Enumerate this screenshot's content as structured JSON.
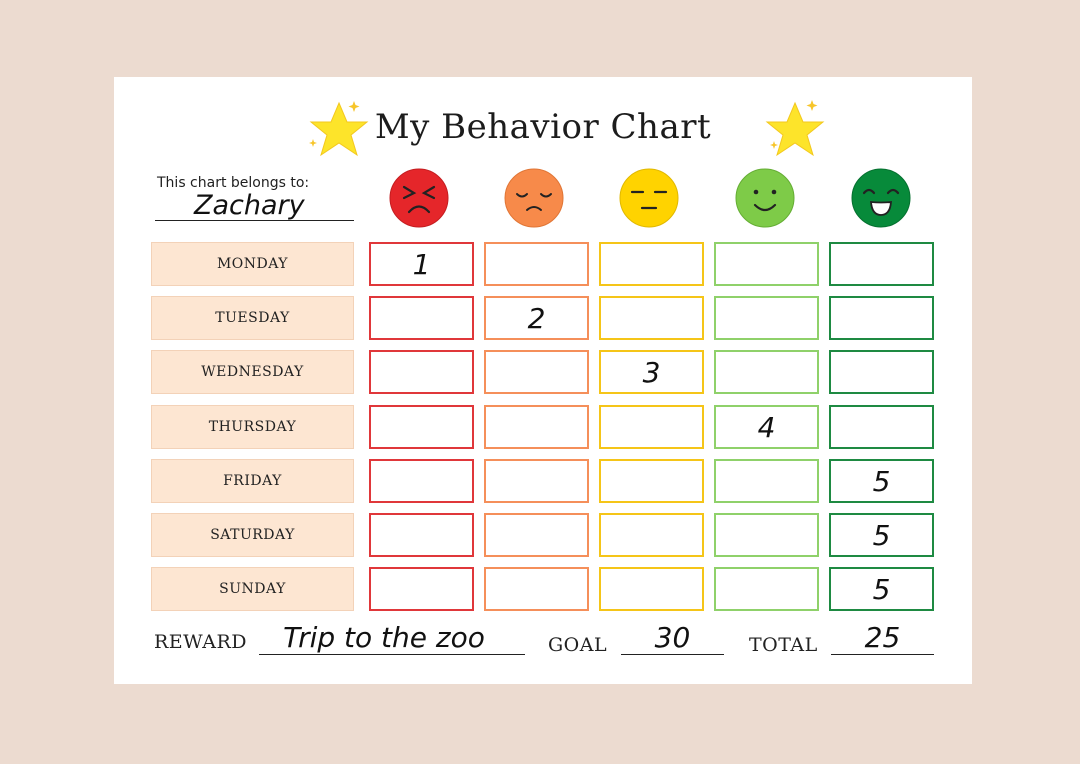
{
  "title": "My Behavior Chart",
  "belongs": {
    "label": "This chart belongs to:",
    "name": "Zachary"
  },
  "faces": [
    {
      "icon": "angry-face-icon",
      "color": "#e5262a"
    },
    {
      "icon": "sad-face-icon",
      "color": "#f78a4a"
    },
    {
      "icon": "neutral-face-icon",
      "color": "#ffd300"
    },
    {
      "icon": "smile-face-icon",
      "color": "#7ecb48"
    },
    {
      "icon": "happy-face-icon",
      "color": "#078a3a"
    }
  ],
  "column_border_colors": [
    "#e0373a",
    "#f58f5a",
    "#f5c518",
    "#8fd16a",
    "#1e8a42"
  ],
  "days": [
    {
      "label": "MONDAY",
      "marks": [
        "1",
        "",
        "",
        "",
        ""
      ]
    },
    {
      "label": "TUESDAY",
      "marks": [
        "",
        "2",
        "",
        "",
        ""
      ]
    },
    {
      "label": "WEDNESDAY",
      "marks": [
        "",
        "",
        "3",
        "",
        ""
      ]
    },
    {
      "label": "THURSDAY",
      "marks": [
        "",
        "",
        "",
        "4",
        ""
      ]
    },
    {
      "label": "FRIDAY",
      "marks": [
        "",
        "",
        "",
        "",
        "5"
      ]
    },
    {
      "label": "SATURDAY",
      "marks": [
        "",
        "",
        "",
        "",
        "5"
      ]
    },
    {
      "label": "SUNDAY",
      "marks": [
        "",
        "",
        "",
        "",
        "5"
      ]
    }
  ],
  "footer": {
    "reward_label": "REWARD",
    "reward_value": "Trip to the zoo",
    "goal_label": "GOAL",
    "goal_value": "30",
    "total_label": "TOTAL",
    "total_value": "25"
  }
}
